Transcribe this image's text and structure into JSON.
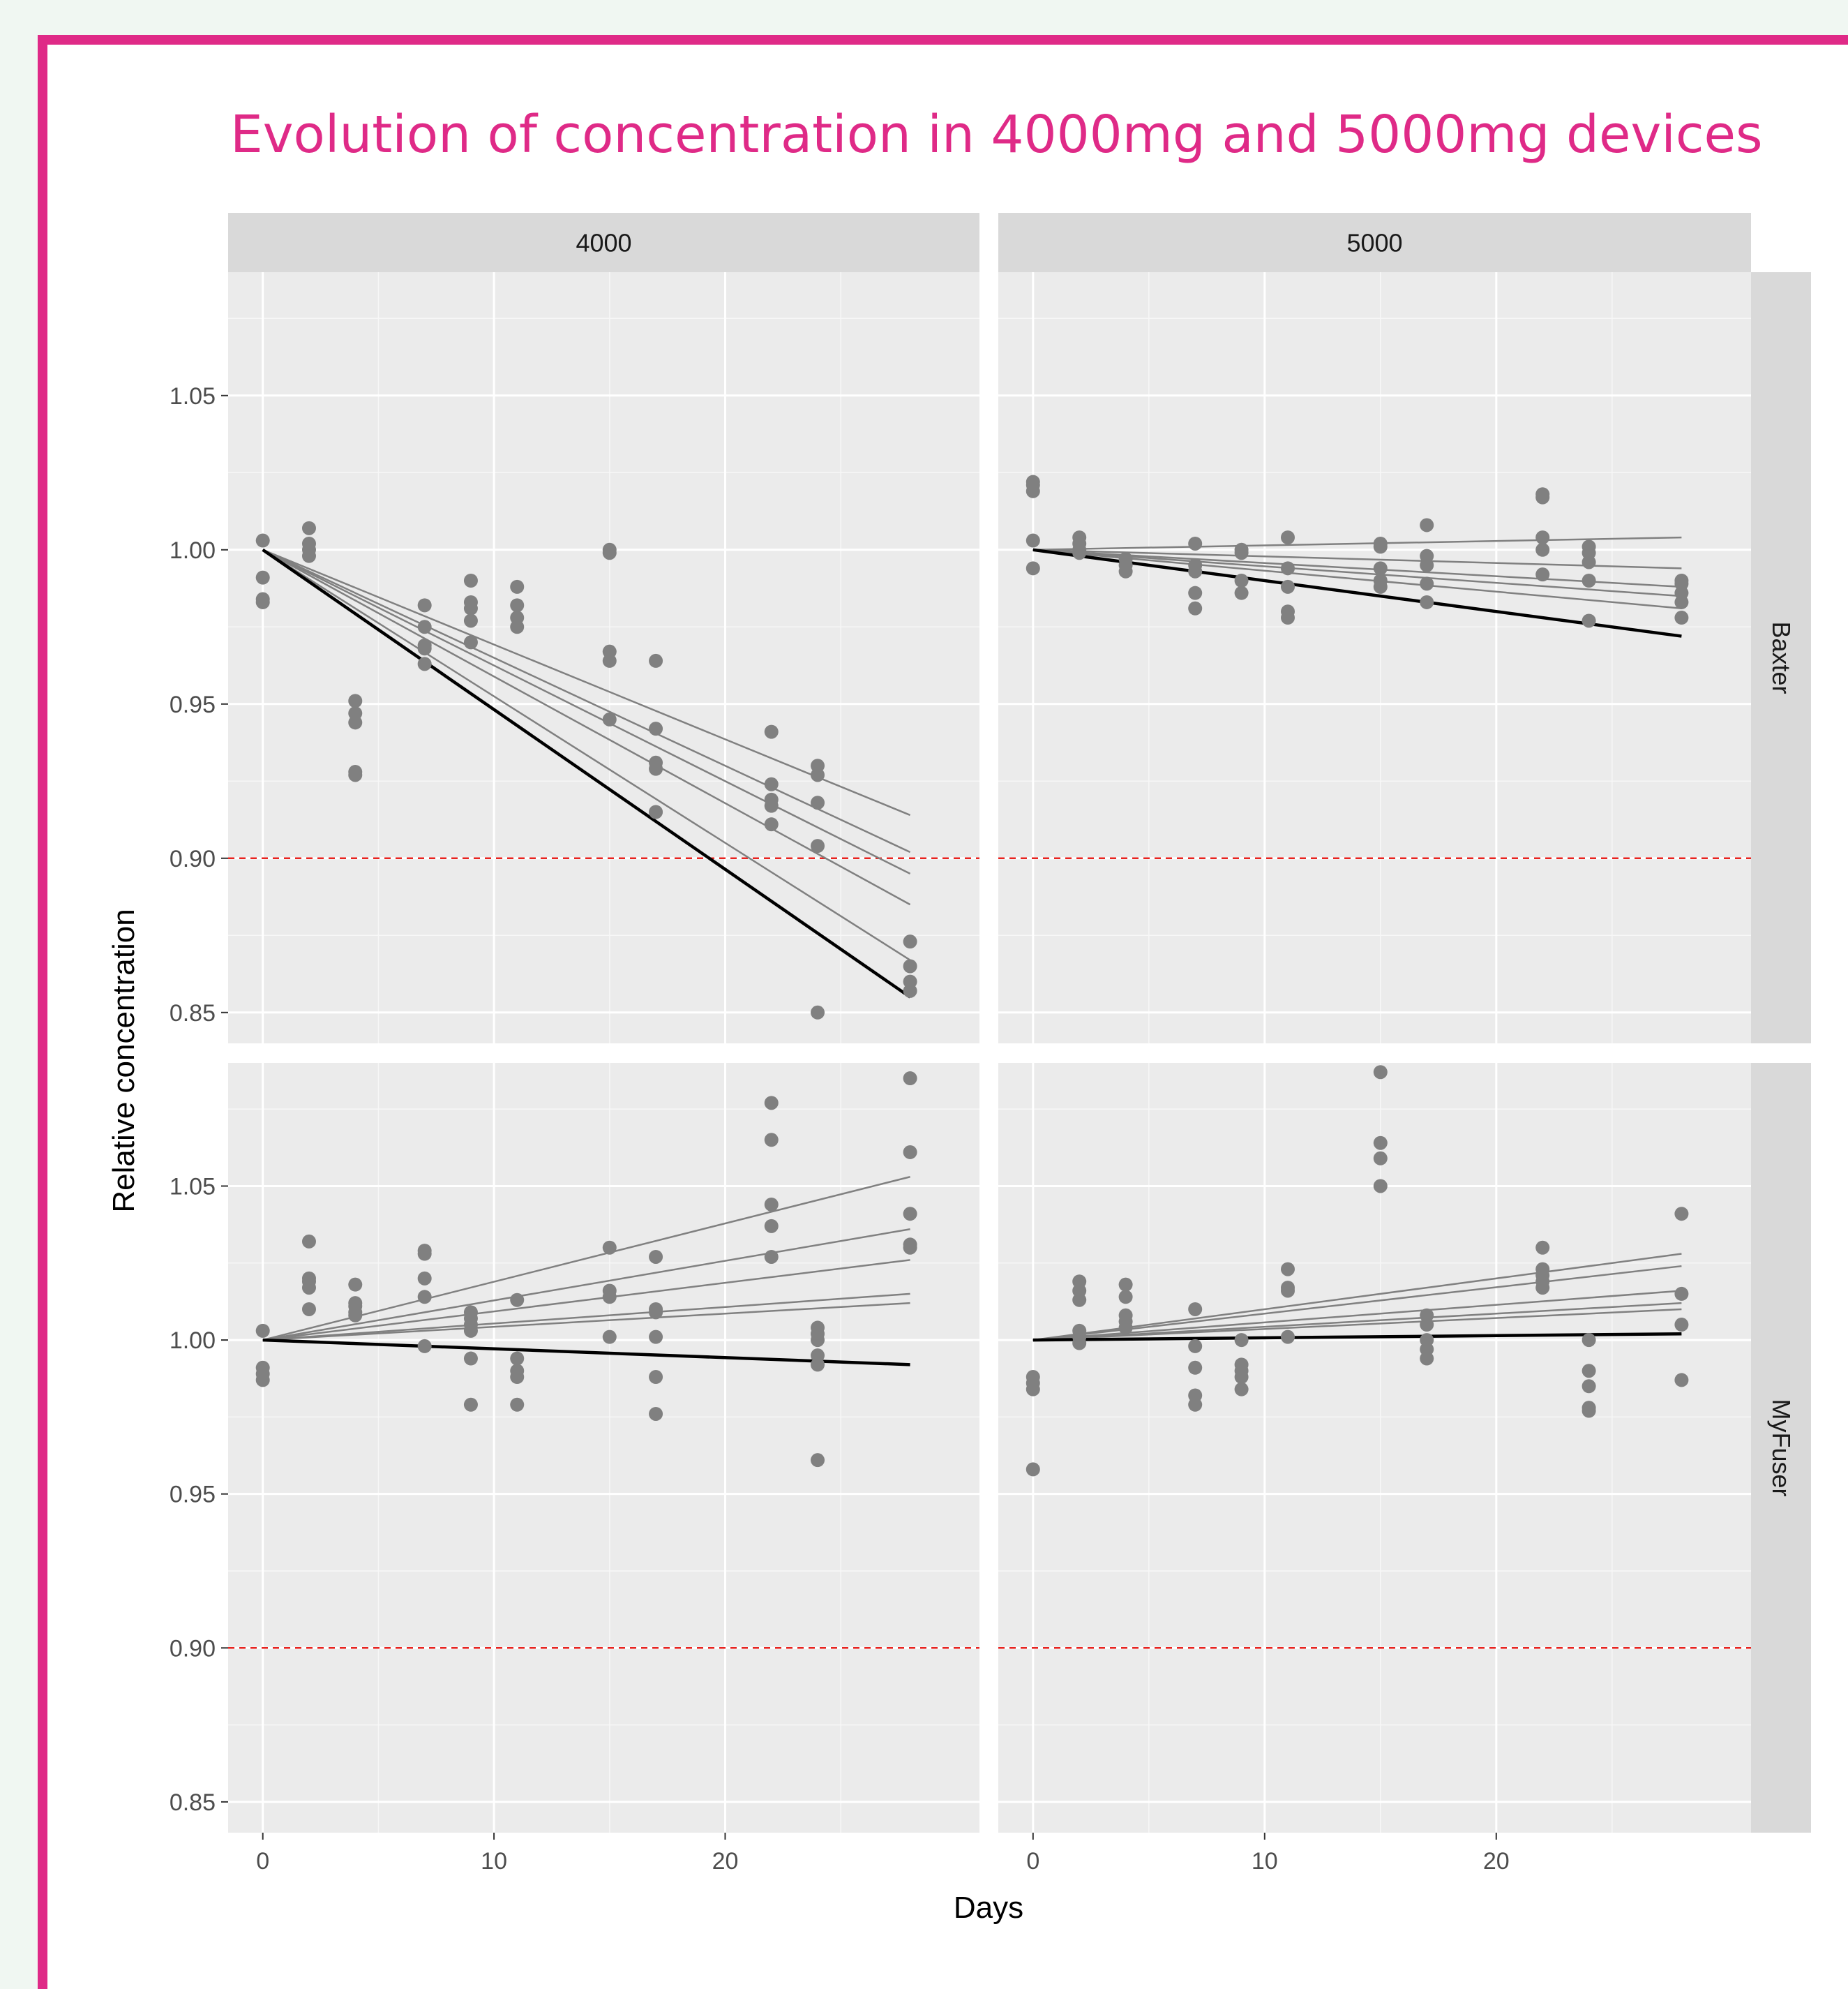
{
  "chart_data": {
    "type": "scatter",
    "title": "Evolution of concentration in 4000mg and 5000mg devices",
    "xlabel": "Days",
    "ylabel": "Relative concentration",
    "xlim": [
      -1.5,
      31
    ],
    "ylim": [
      0.84,
      1.09
    ],
    "x_ticks": [
      0,
      10,
      20
    ],
    "y_ticks": [
      0.85,
      0.9,
      0.95,
      1.0,
      1.05
    ],
    "y_tick_labels": [
      "0.85",
      "0.90",
      "0.95",
      "1.00",
      "1.05"
    ],
    "threshold": 0.9,
    "column_strips": [
      "4000",
      "5000"
    ],
    "row_strips": [
      "Baxter",
      "MyFuser"
    ],
    "colors": {
      "points": "#808080",
      "thin_lines": "#808080",
      "bold_line": "#000000",
      "threshold": "#e8231f",
      "panel_bg": "#ebebeb",
      "strip_bg": "#d9d9d9",
      "title": "#df2a87"
    },
    "panels": [
      {
        "row": "Baxter",
        "col": "4000",
        "points": [
          [
            0,
            1.003
          ],
          [
            0,
            0.991
          ],
          [
            0,
            0.984
          ],
          [
            0,
            0.983
          ],
          [
            2,
            1.007
          ],
          [
            2,
            1.002
          ],
          [
            2,
            1.0
          ],
          [
            2,
            0.998
          ],
          [
            4,
            0.951
          ],
          [
            4,
            0.947
          ],
          [
            4,
            0.944
          ],
          [
            4,
            0.928
          ],
          [
            4,
            0.927
          ],
          [
            7,
            0.982
          ],
          [
            7,
            0.975
          ],
          [
            7,
            0.969
          ],
          [
            7,
            0.968
          ],
          [
            7,
            0.963
          ],
          [
            9,
            0.99
          ],
          [
            9,
            0.983
          ],
          [
            9,
            0.981
          ],
          [
            9,
            0.977
          ],
          [
            9,
            0.97
          ],
          [
            11,
            0.988
          ],
          [
            11,
            0.982
          ],
          [
            11,
            0.978
          ],
          [
            11,
            0.975
          ],
          [
            15,
            1.0
          ],
          [
            15,
            0.999
          ],
          [
            15,
            0.967
          ],
          [
            15,
            0.964
          ],
          [
            15,
            0.945
          ],
          [
            17,
            0.964
          ],
          [
            17,
            0.942
          ],
          [
            17,
            0.931
          ],
          [
            17,
            0.929
          ],
          [
            17,
            0.915
          ],
          [
            22,
            0.941
          ],
          [
            22,
            0.924
          ],
          [
            22,
            0.919
          ],
          [
            22,
            0.917
          ],
          [
            22,
            0.911
          ],
          [
            24,
            0.93
          ],
          [
            24,
            0.927
          ],
          [
            24,
            0.918
          ],
          [
            24,
            0.904
          ],
          [
            24,
            0.85
          ],
          [
            28,
            0.873
          ],
          [
            28,
            0.865
          ],
          [
            28,
            0.86
          ],
          [
            28,
            0.857
          ]
        ],
        "thin_lines": [
          [
            0,
            1.0,
            28,
            0.914
          ],
          [
            0,
            1.0,
            28,
            0.902
          ],
          [
            0,
            1.0,
            28,
            0.895
          ],
          [
            0,
            1.0,
            28,
            0.885
          ],
          [
            0,
            1.0,
            28,
            0.867
          ]
        ],
        "bold_line": [
          0,
          1.0,
          28,
          0.855
        ]
      },
      {
        "row": "Baxter",
        "col": "5000",
        "points": [
          [
            0,
            1.022
          ],
          [
            0,
            1.021
          ],
          [
            0,
            1.019
          ],
          [
            0,
            1.003
          ],
          [
            0,
            0.994
          ],
          [
            2,
            1.004
          ],
          [
            2,
            1.002
          ],
          [
            2,
            1.0
          ],
          [
            2,
            0.999
          ],
          [
            4,
            0.997
          ],
          [
            4,
            0.995
          ],
          [
            4,
            0.993
          ],
          [
            7,
            1.002
          ],
          [
            7,
            0.995
          ],
          [
            7,
            0.993
          ],
          [
            7,
            0.986
          ],
          [
            7,
            0.981
          ],
          [
            9,
            1.0
          ],
          [
            9,
            0.999
          ],
          [
            9,
            0.99
          ],
          [
            9,
            0.986
          ],
          [
            11,
            1.004
          ],
          [
            11,
            0.994
          ],
          [
            11,
            0.988
          ],
          [
            11,
            0.98
          ],
          [
            11,
            0.978
          ],
          [
            15,
            1.002
          ],
          [
            15,
            1.001
          ],
          [
            15,
            0.994
          ],
          [
            15,
            0.99
          ],
          [
            15,
            0.988
          ],
          [
            17,
            1.008
          ],
          [
            17,
            0.998
          ],
          [
            17,
            0.995
          ],
          [
            17,
            0.989
          ],
          [
            17,
            0.983
          ],
          [
            22,
            1.018
          ],
          [
            22,
            1.017
          ],
          [
            22,
            1.004
          ],
          [
            22,
            1.0
          ],
          [
            22,
            0.992
          ],
          [
            24,
            1.001
          ],
          [
            24,
            0.999
          ],
          [
            24,
            0.996
          ],
          [
            24,
            0.99
          ],
          [
            24,
            0.977
          ],
          [
            28,
            0.99
          ],
          [
            28,
            0.989
          ],
          [
            28,
            0.986
          ],
          [
            28,
            0.983
          ],
          [
            28,
            0.978
          ]
        ],
        "thin_lines": [
          [
            0,
            1.0,
            28,
            1.004
          ],
          [
            0,
            1.0,
            28,
            0.994
          ],
          [
            0,
            1.0,
            28,
            0.988
          ],
          [
            0,
            1.0,
            28,
            0.985
          ],
          [
            0,
            1.0,
            28,
            0.981
          ]
        ],
        "bold_line": [
          0,
          1.0,
          28,
          0.972
        ]
      },
      {
        "row": "MyFuser",
        "col": "4000",
        "points": [
          [
            0,
            1.003
          ],
          [
            0,
            0.991
          ],
          [
            0,
            0.989
          ],
          [
            0,
            0.987
          ],
          [
            2,
            1.032
          ],
          [
            2,
            1.02
          ],
          [
            2,
            1.019
          ],
          [
            2,
            1.017
          ],
          [
            2,
            1.01
          ],
          [
            4,
            1.018
          ],
          [
            4,
            1.012
          ],
          [
            4,
            1.011
          ],
          [
            4,
            1.009
          ],
          [
            4,
            1.008
          ],
          [
            7,
            1.029
          ],
          [
            7,
            1.028
          ],
          [
            7,
            1.02
          ],
          [
            7,
            1.014
          ],
          [
            7,
            0.998
          ],
          [
            9,
            1.009
          ],
          [
            9,
            1.007
          ],
          [
            9,
            1.005
          ],
          [
            9,
            1.003
          ],
          [
            9,
            0.994
          ],
          [
            9,
            0.979
          ],
          [
            11,
            1.013
          ],
          [
            11,
            0.994
          ],
          [
            11,
            0.99
          ],
          [
            11,
            0.988
          ],
          [
            11,
            0.979
          ],
          [
            15,
            1.03
          ],
          [
            15,
            1.016
          ],
          [
            15,
            1.014
          ],
          [
            15,
            1.001
          ],
          [
            17,
            1.027
          ],
          [
            17,
            1.01
          ],
          [
            17,
            1.009
          ],
          [
            17,
            1.001
          ],
          [
            17,
            0.988
          ],
          [
            17,
            0.976
          ],
          [
            22,
            1.077
          ],
          [
            22,
            1.065
          ],
          [
            22,
            1.044
          ],
          [
            22,
            1.037
          ],
          [
            22,
            1.027
          ],
          [
            24,
            1.004
          ],
          [
            24,
            1.002
          ],
          [
            24,
            1.0
          ],
          [
            24,
            0.995
          ],
          [
            24,
            0.992
          ],
          [
            24,
            0.961
          ],
          [
            28,
            1.085
          ],
          [
            28,
            1.061
          ],
          [
            28,
            1.041
          ],
          [
            28,
            1.031
          ],
          [
            28,
            1.03
          ]
        ],
        "thin_lines": [
          [
            0,
            1.0,
            28,
            1.053
          ],
          [
            0,
            1.0,
            28,
            1.036
          ],
          [
            0,
            1.0,
            28,
            1.026
          ],
          [
            0,
            1.0,
            28,
            1.015
          ],
          [
            0,
            1.0,
            28,
            1.012
          ]
        ],
        "bold_line": [
          0,
          1.0,
          28,
          0.992
        ]
      },
      {
        "row": "MyFuser",
        "col": "5000",
        "points": [
          [
            0,
            0.988
          ],
          [
            0,
            0.986
          ],
          [
            0,
            0.984
          ],
          [
            0,
            0.958
          ],
          [
            2,
            1.019
          ],
          [
            2,
            1.016
          ],
          [
            2,
            1.013
          ],
          [
            2,
            1.003
          ],
          [
            2,
            1.001
          ],
          [
            2,
            0.999
          ],
          [
            4,
            1.018
          ],
          [
            4,
            1.014
          ],
          [
            4,
            1.008
          ],
          [
            4,
            1.006
          ],
          [
            4,
            1.004
          ],
          [
            7,
            1.01
          ],
          [
            7,
            0.998
          ],
          [
            7,
            0.991
          ],
          [
            7,
            0.982
          ],
          [
            7,
            0.979
          ],
          [
            9,
            1.0
          ],
          [
            9,
            0.992
          ],
          [
            9,
            0.99
          ],
          [
            9,
            0.988
          ],
          [
            9,
            0.984
          ],
          [
            11,
            1.023
          ],
          [
            11,
            1.017
          ],
          [
            11,
            1.016
          ],
          [
            11,
            1.001
          ],
          [
            15,
            1.087
          ],
          [
            15,
            1.064
          ],
          [
            15,
            1.059
          ],
          [
            15,
            1.05
          ],
          [
            17,
            1.008
          ],
          [
            17,
            1.005
          ],
          [
            17,
            1.0
          ],
          [
            17,
            0.997
          ],
          [
            17,
            0.994
          ],
          [
            22,
            1.03
          ],
          [
            22,
            1.023
          ],
          [
            22,
            1.021
          ],
          [
            22,
            1.019
          ],
          [
            22,
            1.017
          ],
          [
            24,
            1.0
          ],
          [
            24,
            0.99
          ],
          [
            24,
            0.985
          ],
          [
            24,
            0.978
          ],
          [
            24,
            0.977
          ],
          [
            28,
            1.041
          ],
          [
            28,
            1.015
          ],
          [
            28,
            1.005
          ],
          [
            28,
            0.987
          ]
        ],
        "thin_lines": [
          [
            0,
            1.0,
            28,
            1.028
          ],
          [
            0,
            1.0,
            28,
            1.024
          ],
          [
            0,
            1.0,
            28,
            1.016
          ],
          [
            0,
            1.0,
            28,
            1.012
          ],
          [
            0,
            1.0,
            28,
            1.01
          ]
        ],
        "bold_line": [
          0,
          1.0,
          28,
          1.002
        ]
      }
    ]
  }
}
